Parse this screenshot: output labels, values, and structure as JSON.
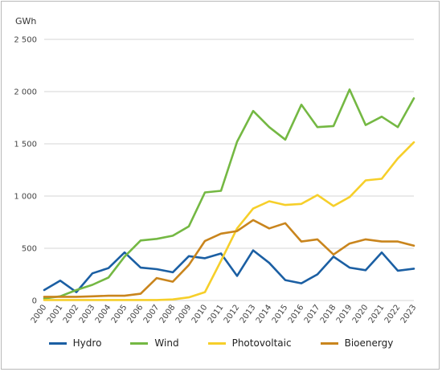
{
  "chart_data": {
    "type": "line",
    "unit_label": "GWh",
    "categories": [
      "2000",
      "2001",
      "2002",
      "2003",
      "2004",
      "2005",
      "2006",
      "2007",
      "2008",
      "2009",
      "2010",
      "2011",
      "2012",
      "2013",
      "2014",
      "2015",
      "2016",
      "2017",
      "2018",
      "2019",
      "2020",
      "2021",
      "2022",
      "2023"
    ],
    "ylim": [
      0,
      2500
    ],
    "yticks": [
      {
        "value": 0,
        "label": "0"
      },
      {
        "value": 500,
        "label": "500"
      },
      {
        "value": 1000,
        "label": "1 000"
      },
      {
        "value": 1500,
        "label": "1 500"
      },
      {
        "value": 2000,
        "label": "2 000"
      },
      {
        "value": 2500,
        "label": "2 500"
      }
    ],
    "grid": true,
    "legend_position": "bottom",
    "series": [
      {
        "name": "Hydro",
        "color": "#1b5fa3",
        "values": [
          100,
          190,
          80,
          260,
          310,
          460,
          315,
          300,
          270,
          425,
          405,
          450,
          235,
          480,
          360,
          195,
          165,
          250,
          420,
          315,
          290,
          460,
          285,
          305
        ]
      },
      {
        "name": "Wind",
        "color": "#74b843",
        "values": [
          20,
          40,
          100,
          150,
          220,
          420,
          575,
          590,
          620,
          710,
          1035,
          1050,
          1520,
          1815,
          1660,
          1540,
          1875,
          1660,
          1670,
          2020,
          1680,
          1760,
          1660,
          1935
        ]
      },
      {
        "name": "Photovoltaic",
        "color": "#f6cf2a",
        "values": [
          5,
          5,
          5,
          5,
          5,
          5,
          5,
          5,
          10,
          30,
          80,
          380,
          690,
          880,
          950,
          915,
          925,
          1010,
          905,
          990,
          1150,
          1165,
          1360,
          1515
        ]
      },
      {
        "name": "Bioenergy",
        "color": "#c9851d",
        "values": [
          35,
          35,
          35,
          40,
          45,
          45,
          65,
          215,
          180,
          340,
          570,
          640,
          665,
          770,
          690,
          740,
          565,
          585,
          440,
          545,
          585,
          565,
          565,
          525
        ]
      }
    ]
  }
}
